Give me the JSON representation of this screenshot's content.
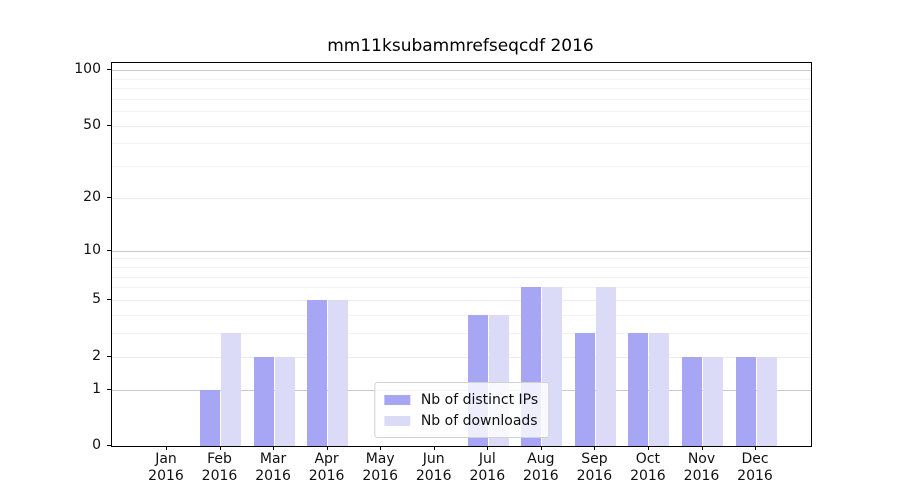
{
  "title": "mm11ksubammrefseqcdf 2016",
  "chart_data": {
    "type": "bar",
    "title": "mm11ksubammrefseqcdf 2016",
    "y_scale": "log1p",
    "grid": true,
    "legend_position": "lower center",
    "categories": [
      "Jan",
      "Feb",
      "Mar",
      "Apr",
      "May",
      "Jun",
      "Jul",
      "Aug",
      "Sep",
      "Oct",
      "Nov",
      "Dec"
    ],
    "year_label": "2016",
    "series": [
      {
        "name": "Nb of distinct IPs",
        "color": "#a6a6f5",
        "values": [
          0,
          1,
          2,
          5,
          0,
          0,
          4,
          6,
          3,
          3,
          2,
          2
        ]
      },
      {
        "name": "Nb of downloads",
        "color": "#dbdbf8",
        "values": [
          0,
          3,
          2,
          5,
          0,
          0,
          4,
          6,
          6,
          3,
          2,
          2
        ]
      }
    ],
    "yticks": [
      0,
      1,
      2,
      5,
      10,
      20,
      50,
      100
    ],
    "minor_yticks": [
      3,
      4,
      6,
      7,
      8,
      9,
      30,
      40,
      60,
      70,
      80,
      90
    ],
    "ylim": [
      0,
      109
    ]
  },
  "colors": {
    "background": "#ffffff",
    "spine": "#000000",
    "grid_decade": "#c9c9c9",
    "grid_mid": "#ececec",
    "grid_minor": "#f2f2f2",
    "bar_dark": "#a6a6f5",
    "bar_light": "#dbdbf8",
    "legend_border": "#d2d2d2",
    "text": "#111111"
  }
}
